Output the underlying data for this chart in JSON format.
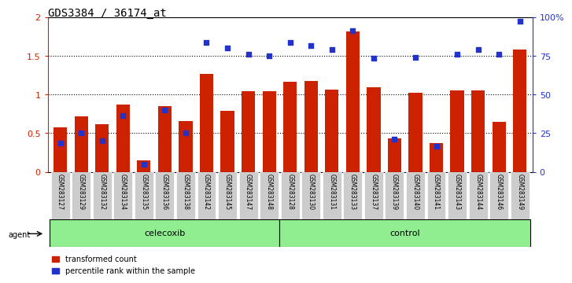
{
  "title": "GDS3384 / 36174_at",
  "samples": [
    "GSM283127",
    "GSM283129",
    "GSM283132",
    "GSM283134",
    "GSM283135",
    "GSM283136",
    "GSM283138",
    "GSM283142",
    "GSM283145",
    "GSM283147",
    "GSM283148",
    "GSM283128",
    "GSM283130",
    "GSM283131",
    "GSM283133",
    "GSM283137",
    "GSM283139",
    "GSM283140",
    "GSM283141",
    "GSM283143",
    "GSM283144",
    "GSM283146",
    "GSM283149"
  ],
  "red_values": [
    0.58,
    0.72,
    0.62,
    0.87,
    0.15,
    0.85,
    0.66,
    1.27,
    0.79,
    1.04,
    1.04,
    1.17,
    1.18,
    1.06,
    1.82,
    1.1,
    0.43,
    1.02,
    0.37,
    1.05,
    1.05,
    0.65,
    1.58
  ],
  "blue_values": [
    0.37,
    0.5,
    0.4,
    0.73,
    0.1,
    0.8,
    0.5,
    1.68,
    1.6,
    1.52,
    1.5,
    1.68,
    1.63,
    1.58,
    1.83,
    1.47,
    0.42,
    1.48,
    0.33,
    1.52,
    1.58,
    1.52,
    1.95
  ],
  "group1_label": "celecoxib",
  "group2_label": "control",
  "group1_count": 11,
  "group2_count": 12,
  "red_color": "#cc2200",
  "blue_color": "#2233cc",
  "bar_width": 0.65,
  "ylim_left": [
    0,
    2
  ],
  "ylim_right": [
    0,
    100
  ],
  "yticks_left": [
    0,
    0.5,
    1.0,
    1.5,
    2.0
  ],
  "ytick_labels_left": [
    "0",
    "0.5",
    "1",
    "1.5",
    "2"
  ],
  "yticks_right": [
    0,
    25,
    50,
    75,
    100
  ],
  "ytick_labels_right": [
    "0",
    "25",
    "50",
    "75",
    "100%"
  ],
  "agent_label": "agent",
  "legend1": "transformed count",
  "legend2": "percentile rank within the sample",
  "bg_xtick": "#cccccc",
  "bg_group": "#90ee90",
  "title_fontsize": 10
}
